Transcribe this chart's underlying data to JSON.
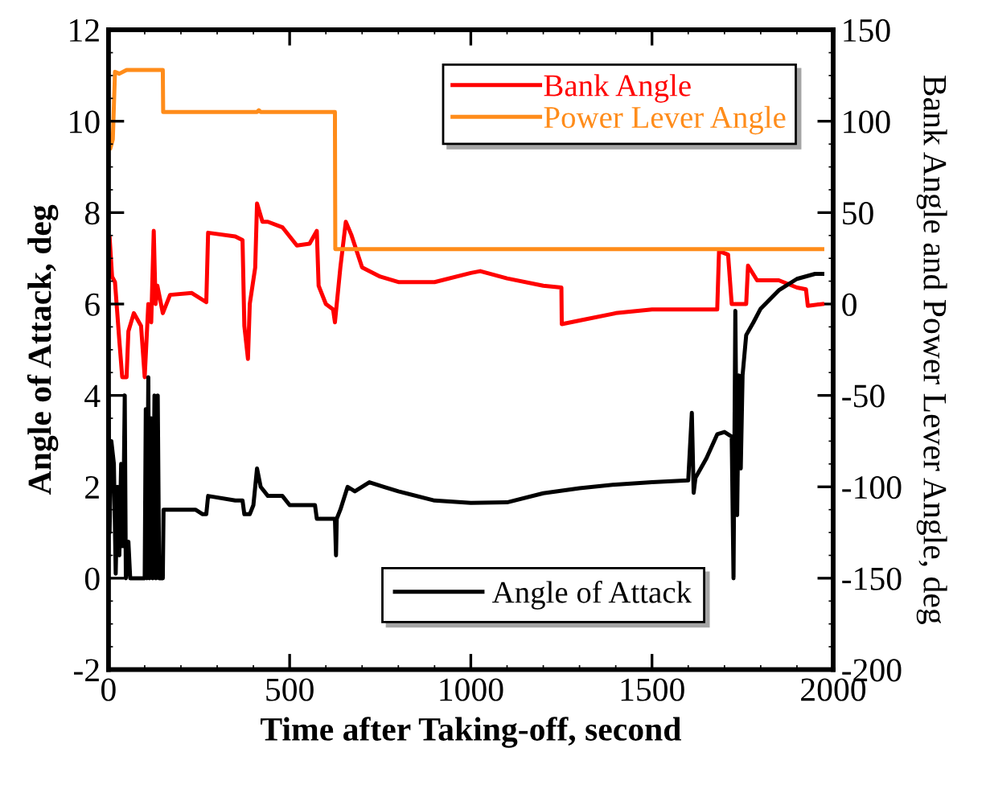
{
  "chart_data": {
    "type": "line",
    "xlabel": "Time after Taking-off, second",
    "ylabel": "Angle of Attack, deg",
    "y2label": "Bank Angle and Power Lever Angle, deg",
    "xlim": [
      0,
      2000
    ],
    "xticks": [
      0,
      500,
      1000,
      1500,
      2000
    ],
    "ylim": [
      -2,
      12
    ],
    "yticks": [
      -2,
      0,
      2,
      4,
      6,
      8,
      10,
      12
    ],
    "y2lim": [
      -200,
      150
    ],
    "y2ticks": [
      -200,
      -150,
      -100,
      -50,
      0,
      50,
      100,
      150
    ],
    "grid": false,
    "legend": "top right",
    "marker": "none",
    "line_style": "solid",
    "series": [
      {
        "name": "Bank Angle",
        "color": "#ff0000",
        "axis": "y2",
        "x": [
          0,
          3,
          10,
          18,
          30,
          38,
          50,
          55,
          70,
          90,
          100,
          110,
          118,
          125,
          130,
          135,
          150,
          170,
          230,
          270,
          275,
          350,
          370,
          375,
          385,
          390,
          405,
          410,
          425,
          440,
          480,
          520,
          555,
          575,
          580,
          600,
          620,
          625,
          640,
          655,
          670,
          700,
          750,
          800,
          900,
          1000,
          1026,
          1100,
          1200,
          1250,
          1251,
          1300,
          1400,
          1500,
          1680,
          1685,
          1710,
          1720,
          1760,
          1765,
          1790,
          1850,
          1900,
          1925,
          1930,
          1970
        ],
        "values": [
          15,
          37,
          15,
          12,
          -20,
          -40,
          -40,
          -15,
          -5,
          -12,
          -40,
          0,
          -10,
          40,
          0,
          10,
          -5,
          5,
          6,
          1,
          39,
          37,
          35,
          -12,
          -30,
          0,
          20,
          55,
          45,
          45,
          42,
          32,
          33,
          40,
          10,
          0,
          -3,
          -10,
          20,
          45,
          38,
          20,
          15,
          12,
          12,
          17,
          18,
          14,
          10,
          9,
          -11,
          -9,
          -5,
          -3,
          -3,
          29,
          27,
          0,
          0,
          21,
          13,
          13,
          9,
          8,
          -1,
          0
        ]
      },
      {
        "name": "Power Lever Angle",
        "color": "#ff8c1a",
        "axis": "y2",
        "x": [
          0,
          5,
          12,
          18,
          30,
          50,
          150,
          151,
          410,
          415,
          420,
          625,
          626,
          1970
        ],
        "values": [
          95,
          85,
          90,
          127,
          126,
          128,
          128,
          105,
          105,
          106,
          105,
          105,
          30,
          30
        ]
      },
      {
        "name": "Angle of Attack",
        "color": "#000000",
        "axis": "y",
        "x": [
          0,
          3,
          8,
          15,
          20,
          25,
          30,
          35,
          40,
          45,
          48,
          55,
          60,
          100,
          103,
          106,
          110,
          113,
          118,
          122,
          127,
          131,
          136,
          140,
          150,
          152,
          240,
          260,
          270,
          275,
          350,
          370,
          375,
          390,
          400,
          410,
          420,
          440,
          480,
          500,
          570,
          575,
          625,
          628,
          630,
          640,
          660,
          680,
          720,
          760,
          800,
          900,
          1000,
          1100,
          1200,
          1300,
          1400,
          1500,
          1600,
          1610,
          1615,
          1620,
          1650,
          1680,
          1700,
          1720,
          1725,
          1730,
          1735,
          1740,
          1745,
          1750,
          1760,
          1780,
          1800,
          1850,
          1900,
          1950,
          1970
        ],
        "values": [
          4,
          1,
          3,
          2.5,
          0.1,
          2,
          0.5,
          2.5,
          0.7,
          4,
          0,
          0.8,
          0,
          0,
          3.7,
          0,
          4.4,
          0,
          3.5,
          0,
          4,
          0,
          4,
          0,
          0,
          1.5,
          1.5,
          1.4,
          1.4,
          1.8,
          1.7,
          1.7,
          1.4,
          1.4,
          1.6,
          2.4,
          2.0,
          1.8,
          1.8,
          1.6,
          1.6,
          1.3,
          1.3,
          0.5,
          1.3,
          1.5,
          2.0,
          1.9,
          2.1,
          2.0,
          1.9,
          1.7,
          1.65,
          1.66,
          1.86,
          1.97,
          2.05,
          2.1,
          2.14,
          3.62,
          1.87,
          2.2,
          2.62,
          3.15,
          3.2,
          3.1,
          0.0,
          5.85,
          1.38,
          4.44,
          2.4,
          4.44,
          5.32,
          5.6,
          5.9,
          6.3,
          6.55,
          6.66,
          6.66
        ]
      }
    ]
  }
}
